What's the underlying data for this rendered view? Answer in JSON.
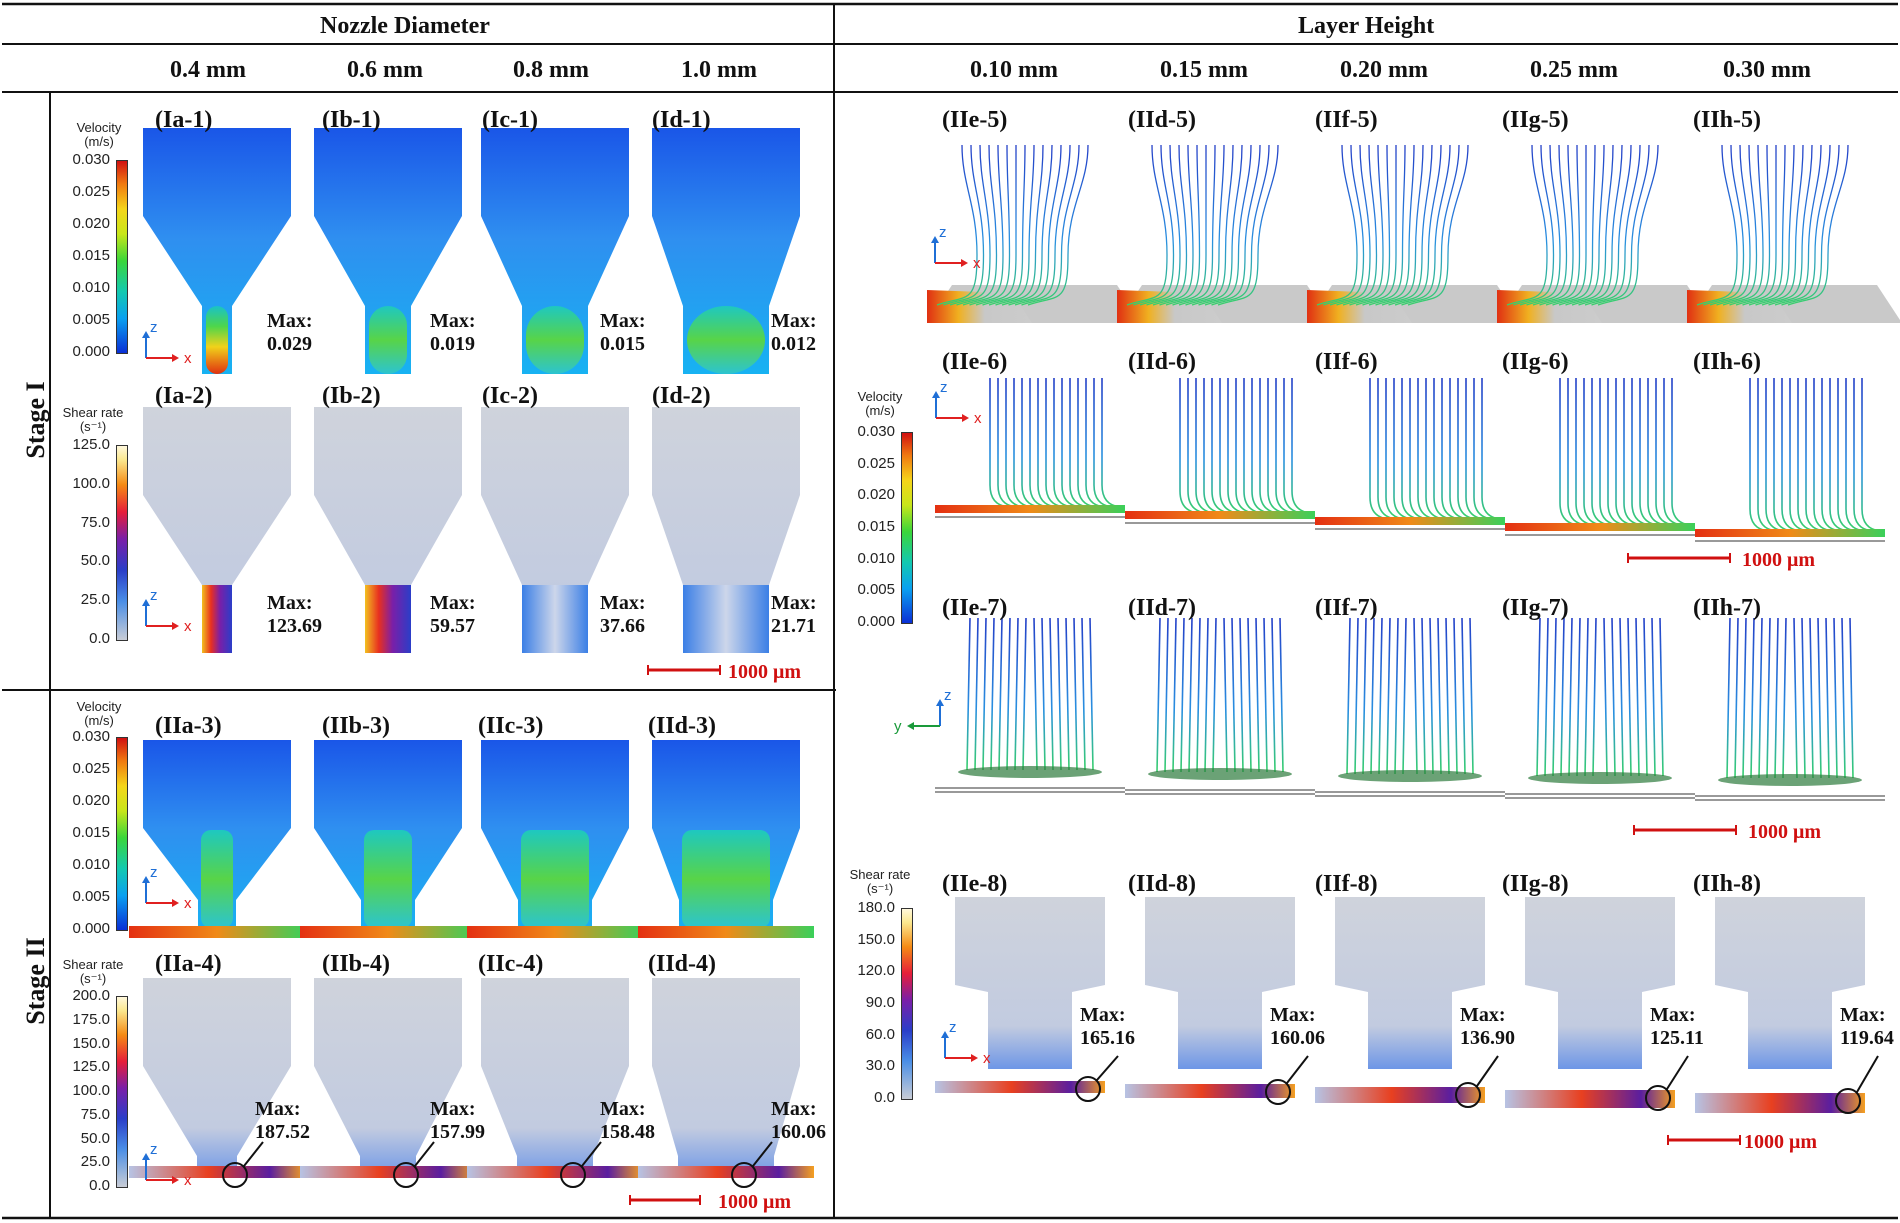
{
  "headers": {
    "nozzle": "Nozzle Diameter",
    "layer": "Layer Height"
  },
  "columns": {
    "nozzle": [
      "0.4 mm",
      "0.6 mm",
      "0.8 mm",
      "1.0 mm"
    ],
    "layer": [
      "0.10 mm",
      "0.15 mm",
      "0.20 mm",
      "0.25 mm",
      "0.30 mm"
    ]
  },
  "stages": [
    "Stage I",
    "Stage II"
  ],
  "legend": {
    "velocity_title": "Velocity",
    "velocity_unit": "(m/s)",
    "shear_title": "Shear rate",
    "shear_unit": "(s⁻¹)",
    "velocity_ticks": [
      "0.030",
      "0.025",
      "0.020",
      "0.015",
      "0.010",
      "0.005",
      "0.000"
    ],
    "shear_ticks_stage1": [
      "125.0",
      "100.0",
      "75.0",
      "50.0",
      "25.0",
      "0.0"
    ],
    "shear_ticks_stage2": [
      "200.0",
      "175.0",
      "150.0",
      "125.0",
      "100.0",
      "75.0",
      "50.0",
      "25.0",
      "0.0"
    ],
    "shear_ticks_layer": [
      "180.0",
      "150.0",
      "120.0",
      "90.0",
      "60.0",
      "30.0",
      "0.0"
    ]
  },
  "axes": {
    "z": "z",
    "x": "x",
    "y": "y"
  },
  "max_label": "Max:",
  "scale_bar": "1000 μm",
  "stage1_velocity": {
    "labels": [
      "(Ia-1)",
      "(Ib-1)",
      "(Ic-1)",
      "(Id-1)"
    ],
    "max": [
      "0.029",
      "0.019",
      "0.015",
      "0.012"
    ]
  },
  "stage1_shear": {
    "labels": [
      "(Ia-2)",
      "(Ib-2)",
      "(Ic-2)",
      "(Id-2)"
    ],
    "max": [
      "123.69",
      "59.57",
      "37.66",
      "21.71"
    ]
  },
  "stage2_velocity": {
    "labels": [
      "(IIa-3)",
      "(IIb-3)",
      "(IIc-3)",
      "(IId-3)"
    ]
  },
  "stage2_shear": {
    "labels": [
      "(IIa-4)",
      "(IIb-4)",
      "(IIc-4)",
      "(IId-4)"
    ],
    "max": [
      "187.52",
      "157.99",
      "158.48",
      "160.06"
    ]
  },
  "layer_row5": {
    "labels": [
      "(IIe-5)",
      "(IId-5)",
      "(IIf-5)",
      "(IIg-5)",
      "(IIh-5)"
    ]
  },
  "layer_row6": {
    "labels": [
      "(IIe-6)",
      "(IId-6)",
      "(IIf-6)",
      "(IIg-6)",
      "(IIh-6)"
    ]
  },
  "layer_row7": {
    "labels": [
      "(IIe-7)",
      "(IId-7)",
      "(IIf-7)",
      "(IIg-7)",
      "(IIh-7)"
    ]
  },
  "layer_row8": {
    "labels": [
      "(IIe-8)",
      "(IId-8)",
      "(IIf-8)",
      "(IIg-8)",
      "(IIh-8)"
    ],
    "max": [
      "165.16",
      "160.06",
      "136.90",
      "125.11",
      "119.64"
    ]
  },
  "colors": {
    "axis_z": "#1f6fd6",
    "axis_x": "#e02020",
    "axis_y": "#1a9a3a",
    "scale_bar": "#d01010"
  }
}
